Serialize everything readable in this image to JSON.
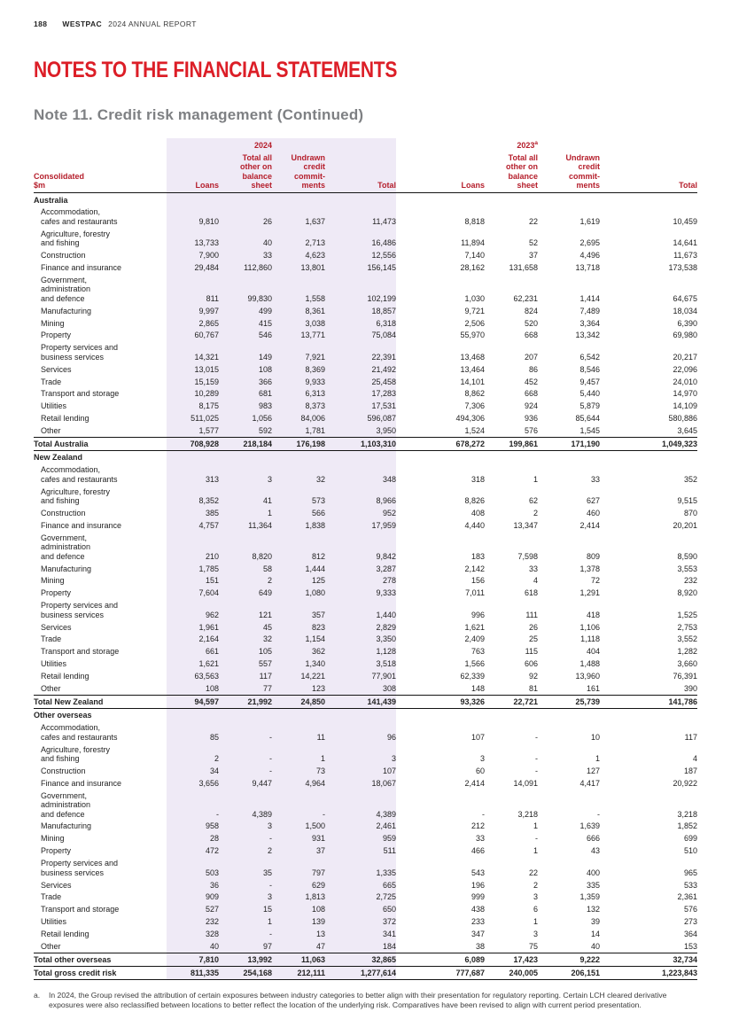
{
  "colors": {
    "brand_red": "#DC1E27",
    "table_header_red": "#B51E2B",
    "band_lavender": "#EFEAF6"
  },
  "header": {
    "page_number": "188",
    "brand": "WESTPAC",
    "report_title": "2024 ANNUAL REPORT"
  },
  "titles": {
    "section": "NOTES TO THE FINANCIAL STATEMENTS",
    "note": "Note 11. Credit risk management (Continued)"
  },
  "table": {
    "row_header": "Consolidated\n$m",
    "year_groups": [
      {
        "year": "2024",
        "note": ""
      },
      {
        "year": "2023",
        "note": "a"
      }
    ],
    "column_headers": [
      "Loans",
      "Total all\nother on\nbalance\nsheet",
      "Undrawn\ncredit\ncommit-\nments",
      "Total"
    ],
    "sections": [
      {
        "name": "Australia",
        "rows": [
          {
            "label": "Accommodation,\ncafes and restaurants",
            "values": [
              "9,810",
              "26",
              "1,637",
              "11,473",
              "8,818",
              "22",
              "1,619",
              "10,459"
            ]
          },
          {
            "label": "Agriculture, forestry\nand fishing",
            "values": [
              "13,733",
              "40",
              "2,713",
              "16,486",
              "11,894",
              "52",
              "2,695",
              "14,641"
            ]
          },
          {
            "label": "Construction",
            "values": [
              "7,900",
              "33",
              "4,623",
              "12,556",
              "7,140",
              "37",
              "4,496",
              "11,673"
            ]
          },
          {
            "label": "Finance and insurance",
            "values": [
              "29,484",
              "112,860",
              "13,801",
              "156,145",
              "28,162",
              "131,658",
              "13,718",
              "173,538"
            ]
          },
          {
            "label": "Government,\nadministration\nand defence",
            "values": [
              "811",
              "99,830",
              "1,558",
              "102,199",
              "1,030",
              "62,231",
              "1,414",
              "64,675"
            ]
          },
          {
            "label": "Manufacturing",
            "values": [
              "9,997",
              "499",
              "8,361",
              "18,857",
              "9,721",
              "824",
              "7,489",
              "18,034"
            ]
          },
          {
            "label": "Mining",
            "values": [
              "2,865",
              "415",
              "3,038",
              "6,318",
              "2,506",
              "520",
              "3,364",
              "6,390"
            ]
          },
          {
            "label": "Property",
            "values": [
              "60,767",
              "546",
              "13,771",
              "75,084",
              "55,970",
              "668",
              "13,342",
              "69,980"
            ]
          },
          {
            "label": "Property services and\nbusiness services",
            "values": [
              "14,321",
              "149",
              "7,921",
              "22,391",
              "13,468",
              "207",
              "6,542",
              "20,217"
            ]
          },
          {
            "label": "Services",
            "values": [
              "13,015",
              "108",
              "8,369",
              "21,492",
              "13,464",
              "86",
              "8,546",
              "22,096"
            ]
          },
          {
            "label": "Trade",
            "values": [
              "15,159",
              "366",
              "9,933",
              "25,458",
              "14,101",
              "452",
              "9,457",
              "24,010"
            ]
          },
          {
            "label": "Transport and storage",
            "values": [
              "10,289",
              "681",
              "6,313",
              "17,283",
              "8,862",
              "668",
              "5,440",
              "14,970"
            ]
          },
          {
            "label": "Utilities",
            "values": [
              "8,175",
              "983",
              "8,373",
              "17,531",
              "7,306",
              "924",
              "5,879",
              "14,109"
            ]
          },
          {
            "label": "Retail lending",
            "values": [
              "511,025",
              "1,056",
              "84,006",
              "596,087",
              "494,306",
              "936",
              "85,644",
              "580,886"
            ]
          },
          {
            "label": "Other",
            "values": [
              "1,577",
              "592",
              "1,781",
              "3,950",
              "1,524",
              "576",
              "1,545",
              "3,645"
            ]
          }
        ],
        "total": {
          "label": "Total Australia",
          "values": [
            "708,928",
            "218,184",
            "176,198",
            "1,103,310",
            "678,272",
            "199,861",
            "171,190",
            "1,049,323"
          ]
        }
      },
      {
        "name": "New Zealand",
        "rows": [
          {
            "label": "Accommodation,\ncafes and restaurants",
            "values": [
              "313",
              "3",
              "32",
              "348",
              "318",
              "1",
              "33",
              "352"
            ]
          },
          {
            "label": "Agriculture, forestry\nand fishing",
            "values": [
              "8,352",
              "41",
              "573",
              "8,966",
              "8,826",
              "62",
              "627",
              "9,515"
            ]
          },
          {
            "label": "Construction",
            "values": [
              "385",
              "1",
              "566",
              "952",
              "408",
              "2",
              "460",
              "870"
            ]
          },
          {
            "label": "Finance and insurance",
            "values": [
              "4,757",
              "11,364",
              "1,838",
              "17,959",
              "4,440",
              "13,347",
              "2,414",
              "20,201"
            ]
          },
          {
            "label": "Government,\nadministration\nand defence",
            "values": [
              "210",
              "8,820",
              "812",
              "9,842",
              "183",
              "7,598",
              "809",
              "8,590"
            ]
          },
          {
            "label": "Manufacturing",
            "values": [
              "1,785",
              "58",
              "1,444",
              "3,287",
              "2,142",
              "33",
              "1,378",
              "3,553"
            ]
          },
          {
            "label": "Mining",
            "values": [
              "151",
              "2",
              "125",
              "278",
              "156",
              "4",
              "72",
              "232"
            ]
          },
          {
            "label": "Property",
            "values": [
              "7,604",
              "649",
              "1,080",
              "9,333",
              "7,011",
              "618",
              "1,291",
              "8,920"
            ]
          },
          {
            "label": "Property services and\nbusiness services",
            "values": [
              "962",
              "121",
              "357",
              "1,440",
              "996",
              "111",
              "418",
              "1,525"
            ]
          },
          {
            "label": "Services",
            "values": [
              "1,961",
              "45",
              "823",
              "2,829",
              "1,621",
              "26",
              "1,106",
              "2,753"
            ]
          },
          {
            "label": "Trade",
            "values": [
              "2,164",
              "32",
              "1,154",
              "3,350",
              "2,409",
              "25",
              "1,118",
              "3,552"
            ]
          },
          {
            "label": "Transport and storage",
            "values": [
              "661",
              "105",
              "362",
              "1,128",
              "763",
              "115",
              "404",
              "1,282"
            ]
          },
          {
            "label": "Utilities",
            "values": [
              "1,621",
              "557",
              "1,340",
              "3,518",
              "1,566",
              "606",
              "1,488",
              "3,660"
            ]
          },
          {
            "label": "Retail lending",
            "values": [
              "63,563",
              "117",
              "14,221",
              "77,901",
              "62,339",
              "92",
              "13,960",
              "76,391"
            ]
          },
          {
            "label": "Other",
            "values": [
              "108",
              "77",
              "123",
              "308",
              "148",
              "81",
              "161",
              "390"
            ]
          }
        ],
        "total": {
          "label": "Total New Zealand",
          "values": [
            "94,597",
            "21,992",
            "24,850",
            "141,439",
            "93,326",
            "22,721",
            "25,739",
            "141,786"
          ]
        }
      },
      {
        "name": "Other overseas",
        "rows": [
          {
            "label": "Accommodation,\ncafes and restaurants",
            "values": [
              "85",
              "-",
              "11",
              "96",
              "107",
              "-",
              "10",
              "117"
            ]
          },
          {
            "label": "Agriculture, forestry\nand fishing",
            "values": [
              "2",
              "-",
              "1",
              "3",
              "3",
              "-",
              "1",
              "4"
            ]
          },
          {
            "label": "Construction",
            "values": [
              "34",
              "-",
              "73",
              "107",
              "60",
              "-",
              "127",
              "187"
            ]
          },
          {
            "label": "Finance and insurance",
            "values": [
              "3,656",
              "9,447",
              "4,964",
              "18,067",
              "2,414",
              "14,091",
              "4,417",
              "20,922"
            ]
          },
          {
            "label": "Government,\nadministration\nand defence",
            "values": [
              "-",
              "4,389",
              "-",
              "4,389",
              "-",
              "3,218",
              "-",
              "3,218"
            ]
          },
          {
            "label": "Manufacturing",
            "values": [
              "958",
              "3",
              "1,500",
              "2,461",
              "212",
              "1",
              "1,639",
              "1,852"
            ]
          },
          {
            "label": "Mining",
            "values": [
              "28",
              "-",
              "931",
              "959",
              "33",
              "-",
              "666",
              "699"
            ]
          },
          {
            "label": "Property",
            "values": [
              "472",
              "2",
              "37",
              "511",
              "466",
              "1",
              "43",
              "510"
            ]
          },
          {
            "label": "Property services and\nbusiness services",
            "values": [
              "503",
              "35",
              "797",
              "1,335",
              "543",
              "22",
              "400",
              "965"
            ]
          },
          {
            "label": "Services",
            "values": [
              "36",
              "-",
              "629",
              "665",
              "196",
              "2",
              "335",
              "533"
            ]
          },
          {
            "label": "Trade",
            "values": [
              "909",
              "3",
              "1,813",
              "2,725",
              "999",
              "3",
              "1,359",
              "2,361"
            ]
          },
          {
            "label": "Transport and storage",
            "values": [
              "527",
              "15",
              "108",
              "650",
              "438",
              "6",
              "132",
              "576"
            ]
          },
          {
            "label": "Utilities",
            "values": [
              "232",
              "1",
              "139",
              "372",
              "233",
              "1",
              "39",
              "273"
            ]
          },
          {
            "label": "Retail lending",
            "values": [
              "328",
              "-",
              "13",
              "341",
              "347",
              "3",
              "14",
              "364"
            ]
          },
          {
            "label": "Other",
            "values": [
              "40",
              "97",
              "47",
              "184",
              "38",
              "75",
              "40",
              "153"
            ]
          }
        ],
        "total": {
          "label": "Total other overseas",
          "values": [
            "7,810",
            "13,992",
            "11,063",
            "32,865",
            "6,089",
            "17,423",
            "9,222",
            "32,734"
          ]
        }
      }
    ],
    "grand_total": {
      "label": "Total gross credit risk",
      "values": [
        "811,335",
        "254,168",
        "212,111",
        "1,277,614",
        "777,687",
        "240,005",
        "206,151",
        "1,223,843"
      ]
    }
  },
  "footnote": {
    "marker": "a.",
    "text": "In 2024, the Group revised the attribution of certain exposures between industry categories to better align with their presentation for regulatory reporting. Certain LCH cleared derivative exposures were also reclassified between locations to better reflect the location of the underlying risk. Comparatives have been revised to align with current period presentation."
  }
}
